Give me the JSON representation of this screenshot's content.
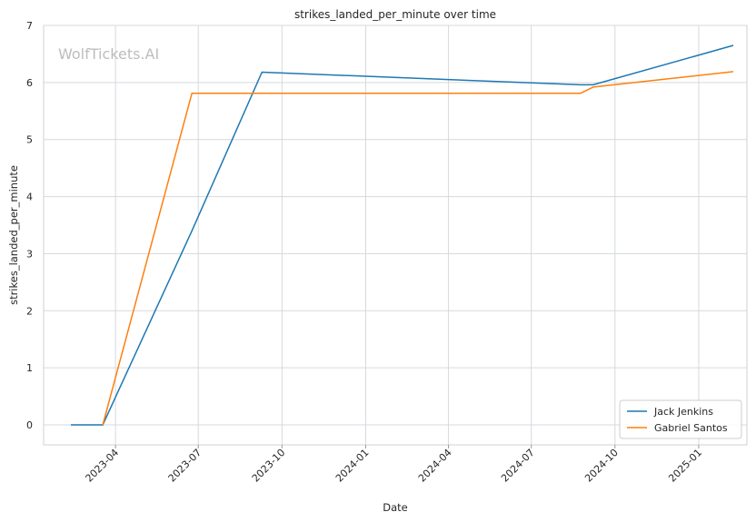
{
  "chart_data": {
    "type": "line",
    "title": "strikes_landed_per_minute over time",
    "xlabel": "Date",
    "ylabel": "strikes_landed_per_minute",
    "watermark": "WolfTickets.AI",
    "ylim": [
      -0.35,
      7
    ],
    "yticks": [
      0,
      1,
      2,
      3,
      4,
      5,
      6,
      7
    ],
    "xlim": [
      "2023-01-12",
      "2025-02-23"
    ],
    "xticks": [
      "2023-04-01",
      "2023-07-01",
      "2023-10-01",
      "2024-01-01",
      "2024-04-01",
      "2024-07-01",
      "2024-10-01",
      "2025-01-01"
    ],
    "xtick_labels": [
      "2023-04",
      "2023-07",
      "2023-10",
      "2024-01",
      "2024-04",
      "2024-07",
      "2024-10",
      "2025-01"
    ],
    "grid": true,
    "legend_position": "bottom-right",
    "series": [
      {
        "name": "Jack Jenkins",
        "color": "#1f77b4",
        "x": [
          "2023-02-11",
          "2023-03-18",
          "2023-06-24",
          "2023-09-09",
          "2024-08-24",
          "2024-09-07",
          "2025-02-08"
        ],
        "y": [
          0.0,
          0.0,
          3.4,
          6.18,
          5.96,
          5.96,
          6.65
        ]
      },
      {
        "name": "Gabriel Santos",
        "color": "#ff7f0e",
        "x": [
          "2023-03-18",
          "2023-06-24",
          "2024-08-24",
          "2024-09-07",
          "2025-02-08"
        ],
        "y": [
          0.0,
          5.81,
          5.81,
          5.92,
          6.19
        ]
      }
    ]
  }
}
